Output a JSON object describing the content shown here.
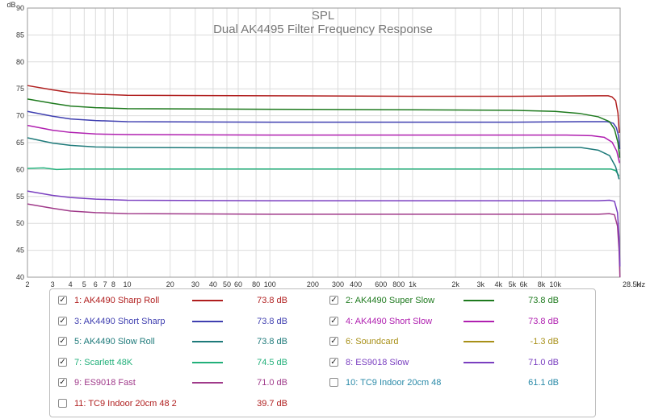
{
  "chart_data": {
    "type": "line",
    "title": "SPL",
    "subtitle": "Dual AK4495 Filter Frequency Response",
    "y_unit": "dB",
    "x_unit": "Hz",
    "x_scale": "log",
    "xlim": [
      2,
      28500
    ],
    "ylim": [
      40,
      90
    ],
    "y_ticks": [
      40,
      45,
      50,
      55,
      60,
      65,
      70,
      75,
      80,
      85,
      90
    ],
    "x_ticks": [
      {
        "v": 2,
        "label": "2"
      },
      {
        "v": 3,
        "label": "3"
      },
      {
        "v": 4,
        "label": "4"
      },
      {
        "v": 5,
        "label": "5"
      },
      {
        "v": 6,
        "label": "6"
      },
      {
        "v": 7,
        "label": "7"
      },
      {
        "v": 8,
        "label": "8"
      },
      {
        "v": 10,
        "label": "10"
      },
      {
        "v": 20,
        "label": "20"
      },
      {
        "v": 30,
        "label": "30"
      },
      {
        "v": 40,
        "label": "40"
      },
      {
        "v": 50,
        "label": "50"
      },
      {
        "v": 60,
        "label": "60"
      },
      {
        "v": 80,
        "label": "80"
      },
      {
        "v": 100,
        "label": "100"
      },
      {
        "v": 200,
        "label": "200"
      },
      {
        "v": 300,
        "label": "300"
      },
      {
        "v": 400,
        "label": "400"
      },
      {
        "v": 600,
        "label": "600"
      },
      {
        "v": 800,
        "label": "800"
      },
      {
        "v": 1000,
        "label": "1k"
      },
      {
        "v": 2000,
        "label": "2k"
      },
      {
        "v": 3000,
        "label": "3k"
      },
      {
        "v": 4000,
        "label": "4k"
      },
      {
        "v": 5000,
        "label": "5k"
      },
      {
        "v": 6000,
        "label": "6k"
      },
      {
        "v": 8000,
        "label": "8k"
      },
      {
        "v": 10000,
        "label": "10k"
      },
      {
        "v": 28500,
        "label": "28.5k"
      }
    ],
    "grid": true,
    "legend_position": "bottom",
    "series": [
      {
        "id": "1",
        "name": "1: AK4490 Sharp Roll",
        "color": "#b01e1e",
        "value_label": "73.8 dB",
        "checked": true,
        "points": [
          [
            2,
            75.6
          ],
          [
            3,
            74.8
          ],
          [
            4,
            74.3
          ],
          [
            6,
            74.0
          ],
          [
            10,
            73.8
          ],
          [
            100,
            73.7
          ],
          [
            1000,
            73.6
          ],
          [
            5000,
            73.6
          ],
          [
            20000,
            73.7
          ],
          [
            23500,
            73.7
          ],
          [
            25000,
            73.5
          ],
          [
            26500,
            72.8
          ],
          [
            27500,
            70.5
          ],
          [
            28100,
            66.8
          ]
        ]
      },
      {
        "id": "2",
        "name": "2: AK4490 Super Slow",
        "color": "#1e7a1e",
        "value_label": "73.8 dB",
        "checked": true,
        "points": [
          [
            2,
            73.1
          ],
          [
            3,
            72.3
          ],
          [
            4,
            71.8
          ],
          [
            6,
            71.5
          ],
          [
            10,
            71.3
          ],
          [
            100,
            71.2
          ],
          [
            1000,
            71.1
          ],
          [
            5000,
            71.0
          ],
          [
            10000,
            70.8
          ],
          [
            15000,
            70.4
          ],
          [
            20000,
            69.8
          ],
          [
            24000,
            68.9
          ],
          [
            26000,
            67.5
          ],
          [
            27500,
            65.0
          ],
          [
            28300,
            62.2
          ]
        ]
      },
      {
        "id": "3",
        "name": "3: AK4490 Short Sharp",
        "color": "#3f3fb0",
        "value_label": "73.8 dB",
        "checked": true,
        "points": [
          [
            2,
            70.8
          ],
          [
            3,
            69.9
          ],
          [
            4,
            69.4
          ],
          [
            6,
            69.1
          ],
          [
            10,
            68.9
          ],
          [
            100,
            68.8
          ],
          [
            1000,
            68.8
          ],
          [
            5000,
            68.8
          ],
          [
            15000,
            68.9
          ],
          [
            23000,
            68.9
          ],
          [
            25500,
            68.6
          ],
          [
            26800,
            67.8
          ],
          [
            27800,
            66.2
          ],
          [
            28300,
            63.8
          ]
        ]
      },
      {
        "id": "4",
        "name": "4: AK4490 Short Slow",
        "color": "#b020b0",
        "value_label": "73.8 dB",
        "checked": true,
        "points": [
          [
            2,
            68.2
          ],
          [
            3,
            67.3
          ],
          [
            4,
            66.9
          ],
          [
            6,
            66.6
          ],
          [
            10,
            66.5
          ],
          [
            100,
            66.4
          ],
          [
            1000,
            66.4
          ],
          [
            5000,
            66.4
          ],
          [
            12000,
            66.4
          ],
          [
            18000,
            66.3
          ],
          [
            22000,
            66.0
          ],
          [
            25000,
            65.1
          ],
          [
            27000,
            63.4
          ],
          [
            28200,
            61.2
          ]
        ]
      },
      {
        "id": "5",
        "name": "5: AK4490 Slow Roll",
        "color": "#1e7a7a",
        "value_label": "73.8 dB",
        "checked": true,
        "points": [
          [
            2,
            65.9
          ],
          [
            3,
            64.9
          ],
          [
            4,
            64.5
          ],
          [
            6,
            64.2
          ],
          [
            10,
            64.1
          ],
          [
            100,
            64.0
          ],
          [
            1000,
            64.0
          ],
          [
            5000,
            64.0
          ],
          [
            10000,
            64.1
          ],
          [
            15000,
            64.1
          ],
          [
            20000,
            63.6
          ],
          [
            24000,
            62.6
          ],
          [
            26500,
            60.5
          ],
          [
            28000,
            58.2
          ]
        ]
      },
      {
        "id": "6",
        "name": "6: Soundcard",
        "color": "#a89018",
        "value_label": "-1.3 dB",
        "checked": true,
        "points": []
      },
      {
        "id": "7",
        "name": "7: Scarlett 48K",
        "color": "#22b07a",
        "value_label": "74.5 dB",
        "checked": true,
        "points": [
          [
            2,
            60.2
          ],
          [
            2.6,
            60.3
          ],
          [
            3.2,
            60.0
          ],
          [
            4,
            60.1
          ],
          [
            6,
            60.1
          ],
          [
            10,
            60.1
          ],
          [
            100,
            60.1
          ],
          [
            1000,
            60.1
          ],
          [
            10000,
            60.1
          ],
          [
            20000,
            60.1
          ],
          [
            24500,
            60.1
          ],
          [
            26500,
            59.8
          ],
          [
            28000,
            58.8
          ]
        ]
      },
      {
        "id": "8",
        "name": "8: ES9018 Slow",
        "color": "#7a3fc0",
        "value_label": "71.0 dB",
        "checked": true,
        "points": [
          [
            2,
            56.0
          ],
          [
            3,
            55.2
          ],
          [
            4,
            54.8
          ],
          [
            6,
            54.5
          ],
          [
            10,
            54.3
          ],
          [
            100,
            54.2
          ],
          [
            1000,
            54.2
          ],
          [
            10000,
            54.2
          ],
          [
            20000,
            54.2
          ],
          [
            24000,
            54.3
          ],
          [
            26000,
            54.1
          ],
          [
            27300,
            52.0
          ],
          [
            28000,
            47.5
          ],
          [
            28400,
            42.0
          ]
        ]
      },
      {
        "id": "9",
        "name": "9: ES9018 Fast",
        "color": "#a03a8a",
        "value_label": "71.0 dB",
        "checked": true,
        "points": [
          [
            2,
            53.6
          ],
          [
            3,
            52.8
          ],
          [
            4,
            52.3
          ],
          [
            6,
            52.0
          ],
          [
            10,
            51.8
          ],
          [
            100,
            51.7
          ],
          [
            1000,
            51.7
          ],
          [
            10000,
            51.7
          ],
          [
            20000,
            51.7
          ],
          [
            24000,
            51.8
          ],
          [
            26000,
            51.6
          ],
          [
            27300,
            49.5
          ],
          [
            28000,
            45.0
          ],
          [
            28400,
            40.0
          ]
        ]
      },
      {
        "id": "10",
        "name": "10: TC9 Indoor 20cm 48",
        "color": "#2a8aa8",
        "value_label": "61.1 dB",
        "checked": false,
        "points": []
      },
      {
        "id": "11",
        "name": "11: TC9 Indoor 20cm 48 2",
        "color": "#b01e1e",
        "value_label": "39.7 dB",
        "checked": false,
        "points": []
      }
    ]
  }
}
